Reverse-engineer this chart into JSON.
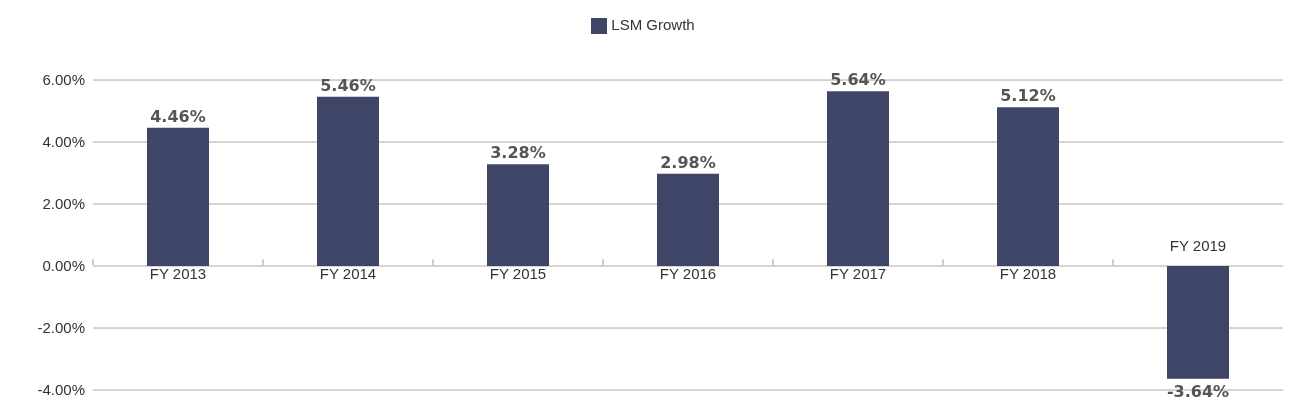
{
  "chart_data": {
    "type": "bar",
    "categories": [
      "FY 2013",
      "FY 2014",
      "FY 2015",
      "FY 2016",
      "FY 2017",
      "FY 2018",
      "FY 2019"
    ],
    "series": [
      {
        "name": "LSM Growth",
        "color": "#3f4566",
        "values": [
          4.46,
          5.46,
          3.28,
          2.98,
          5.64,
          5.12,
          -3.64
        ],
        "value_labels": [
          "4.46%",
          "5.46%",
          "3.28%",
          "2.98%",
          "5.64%",
          "5.12%",
          "-3.64%"
        ]
      }
    ],
    "ylim": [
      -4,
      6
    ],
    "yticks": [
      {
        "value": -4,
        "label": "-4.00%"
      },
      {
        "value": -2,
        "label": "-2.00%"
      },
      {
        "value": 0,
        "label": "0.00%"
      },
      {
        "value": 2,
        "label": "2.00%"
      },
      {
        "value": 4,
        "label": "4.00%"
      },
      {
        "value": 6,
        "label": "6.00%"
      }
    ],
    "grid": "y",
    "legend": "top"
  }
}
